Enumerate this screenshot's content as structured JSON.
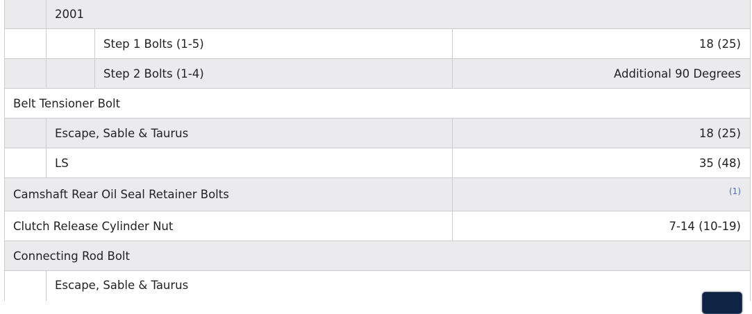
{
  "rows": [
    {
      "label": "2001",
      "value": ""
    },
    {
      "label": "Step 1 Bolts (1-5)",
      "value": "18 (25)"
    },
    {
      "label": "Step 2 Bolts (1-4)",
      "value": "Additional 90 Degrees"
    },
    {
      "label": "Belt Tensioner Bolt",
      "value": ""
    },
    {
      "label": "Escape, Sable & Taurus",
      "value": "18 (25)"
    },
    {
      "label": "LS",
      "value": "35 (48)"
    },
    {
      "label": "Camshaft Rear Oil Seal Retainer Bolts",
      "value": "(1)"
    },
    {
      "label": "Clutch Release Cylinder Nut",
      "value": "7-14 (10-19)"
    },
    {
      "label": "Connecting Rod Bolt",
      "value": ""
    },
    {
      "label": "Escape, Sable & Taurus",
      "value": ""
    }
  ]
}
